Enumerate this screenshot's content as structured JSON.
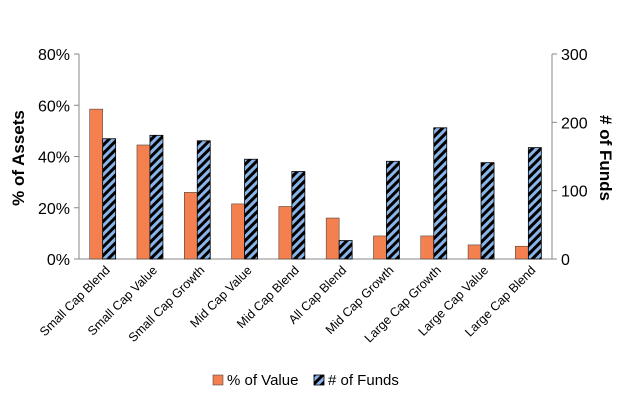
{
  "chart_data": {
    "type": "bar",
    "title": "",
    "categories": [
      "Small Cap Blend",
      "Small Cap Value",
      "Small Cap Growth",
      "Mid Cap Value",
      "Mid Cap Blend",
      "All Cap Blend",
      "Mid Cap Growth",
      "Large Cap Growth",
      "Large Cap Value",
      "Large Cap Blend"
    ],
    "series": [
      {
        "name": "% of Value",
        "axis": "left",
        "color": "#f4804f",
        "values": [
          58.5,
          44.5,
          26,
          21.5,
          20.5,
          16,
          9,
          9,
          5.5,
          5
        ]
      },
      {
        "name": "# of Funds",
        "axis": "right",
        "color": "#8ab4e8",
        "pattern": "black-diagonal-hatch",
        "values": [
          176,
          181,
          173,
          146,
          128,
          27,
          143,
          192,
          141,
          163
        ]
      }
    ],
    "ylabel": "% of Assets",
    "ylabel_right": "# of Funds",
    "ylim": [
      0,
      80
    ],
    "ylim_right": [
      0,
      300
    ],
    "yticks": [
      "0%",
      "20%",
      "40%",
      "60%",
      "80%"
    ],
    "yticks_right": [
      "0",
      "100",
      "200",
      "300"
    ],
    "grid": false,
    "legend_position": "bottom"
  }
}
